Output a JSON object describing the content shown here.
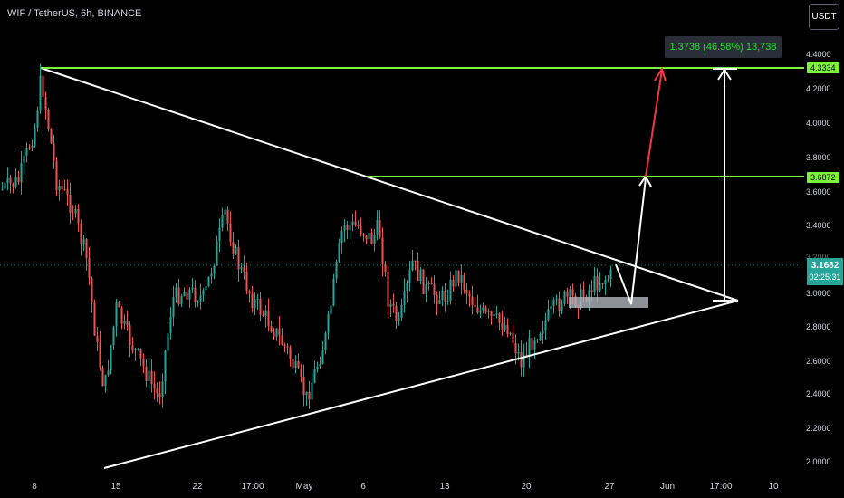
{
  "title": "WIF / TetherUS, 6h, BINANCE",
  "currency": "USDT",
  "measure_label": "1.3738 (46.58%) 13,738",
  "price_axis": {
    "ticks": [
      "4.4000",
      "4.2000",
      "4.0000",
      "3.8000",
      "3.6000",
      "3.4000",
      "3.2000",
      "3.0000",
      "2.8000",
      "2.6000",
      "2.4000",
      "2.2000",
      "2.0000"
    ],
    "tags": [
      {
        "label": "4.3334",
        "color": "#7cf43a"
      },
      {
        "label": "3.6872",
        "color": "#7cf43a"
      }
    ],
    "last_price": "3.1682",
    "countdown": "02:25:31",
    "last_price_color": "#26a69a"
  },
  "time_axis": {
    "ticks": [
      "8",
      "15",
      "22",
      "17:00",
      "May",
      "6",
      "13",
      "20",
      "27",
      "Jun",
      "17:00",
      "10"
    ]
  },
  "colors": {
    "up": "#26a69a",
    "down": "#ef5350",
    "level": "#7cf43a",
    "trendline": "#ffffff",
    "projection": "#f23645"
  }
}
